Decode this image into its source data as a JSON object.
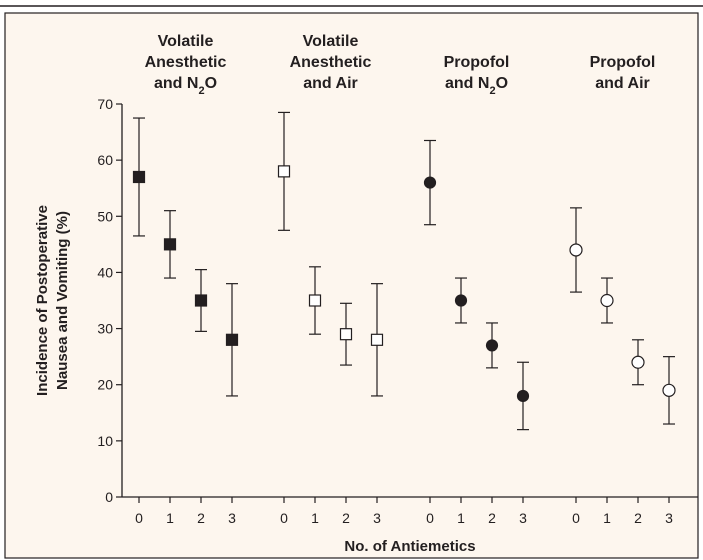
{
  "chart_data": {
    "type": "scatter",
    "ylabel": "Incidence of Postoperative Nausea and Vomiting (%)",
    "ylabel_lines": [
      "Incidence of Postoperative",
      "Nausea and Vomiting (%)"
    ],
    "xlabel": "No. of Antiemetics",
    "ylim": [
      0,
      70
    ],
    "yticks": [
      0,
      10,
      20,
      30,
      40,
      50,
      60,
      70
    ],
    "x_categories": [
      "0",
      "1",
      "2",
      "3"
    ],
    "marker_legend_shown": false,
    "groups": [
      {
        "title_lines": [
          "Volatile",
          "Anesthetic",
          "and N2O"
        ],
        "marker": "filled-square",
        "points": [
          {
            "x": "0",
            "y": 57,
            "low": 46.5,
            "high": 67.5
          },
          {
            "x": "1",
            "y": 45,
            "low": 39,
            "high": 51
          },
          {
            "x": "2",
            "y": 35,
            "low": 29.5,
            "high": 40.5
          },
          {
            "x": "3",
            "y": 28,
            "low": 18,
            "high": 38
          }
        ]
      },
      {
        "title_lines": [
          "Volatile",
          "Anesthetic",
          "and Air"
        ],
        "marker": "open-square",
        "points": [
          {
            "x": "0",
            "y": 58,
            "low": 47.5,
            "high": 68.5
          },
          {
            "x": "1",
            "y": 35,
            "low": 29,
            "high": 41
          },
          {
            "x": "2",
            "y": 29,
            "low": 23.5,
            "high": 34.5
          },
          {
            "x": "3",
            "y": 28,
            "low": 18,
            "high": 38
          }
        ]
      },
      {
        "title_lines": [
          "Propofol",
          "and N2O"
        ],
        "marker": "filled-circle",
        "points": [
          {
            "x": "0",
            "y": 56,
            "low": 48.5,
            "high": 63.5
          },
          {
            "x": "1",
            "y": 35,
            "low": 31,
            "high": 39
          },
          {
            "x": "2",
            "y": 27,
            "low": 23,
            "high": 31
          },
          {
            "x": "3",
            "y": 18,
            "low": 12,
            "high": 24
          }
        ]
      },
      {
        "title_lines": [
          "Propofol",
          "and Air"
        ],
        "marker": "open-circle",
        "points": [
          {
            "x": "0",
            "y": 44,
            "low": 36.5,
            "high": 51.5
          },
          {
            "x": "1",
            "y": 35,
            "low": 31,
            "high": 39
          },
          {
            "x": "2",
            "y": 24,
            "low": 20,
            "high": 28
          },
          {
            "x": "3",
            "y": 19,
            "low": 13,
            "high": 25
          }
        ]
      }
    ]
  },
  "colors": {
    "frame_fill": "#fdf6ee",
    "frame_border": "#231f20",
    "ink": "#231f20",
    "open_marker_fill": "#ffffff"
  }
}
